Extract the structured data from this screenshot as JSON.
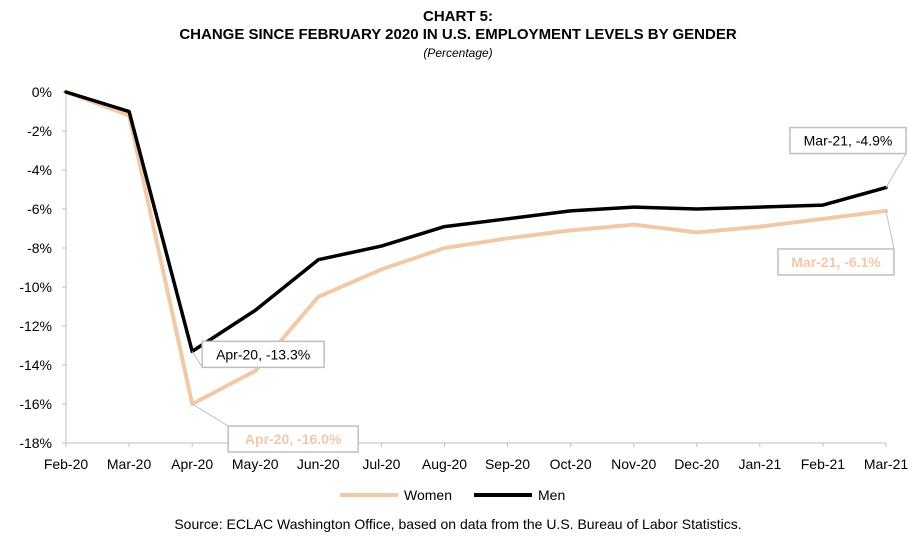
{
  "chart_data": {
    "type": "line",
    "title": "CHART 5:",
    "subtitle": "CHANGE SINCE FEBRUARY 2020 IN U.S. EMPLOYMENT LEVELS BY GENDER",
    "unit_note": "(Percentage)",
    "categories": [
      "Feb-20",
      "Mar-20",
      "Apr-20",
      "May-20",
      "Jun-20",
      "Jul-20",
      "Aug-20",
      "Sep-20",
      "Oct-20",
      "Nov-20",
      "Dec-20",
      "Jan-21",
      "Feb-21",
      "Mar-21"
    ],
    "ylim": [
      -18,
      0
    ],
    "yticks": [
      0,
      -2,
      -4,
      -6,
      -8,
      -10,
      -12,
      -14,
      -16,
      -18
    ],
    "ytick_labels": [
      "0%",
      "-2%",
      "-4%",
      "-6%",
      "-8%",
      "-10%",
      "-12%",
      "-14%",
      "-16%",
      "-18%"
    ],
    "series": [
      {
        "name": "Women",
        "color": "#f2c9a8",
        "values": [
          0,
          -1.2,
          -16.0,
          -14.3,
          -10.5,
          -9.1,
          -8.0,
          -7.5,
          -7.1,
          -6.8,
          -7.2,
          -6.9,
          -6.5,
          -6.1
        ]
      },
      {
        "name": "Men",
        "color": "#000000",
        "values": [
          0,
          -1.0,
          -13.3,
          -11.2,
          -8.6,
          -7.9,
          -6.9,
          -6.5,
          -6.1,
          -5.9,
          -6.0,
          -5.9,
          -5.8,
          -4.9
        ]
      }
    ],
    "annotations": [
      {
        "text": "Apr-20, -13.3%",
        "series": "Men",
        "index": 2
      },
      {
        "text": "Apr-20, -16.0%",
        "series": "Women",
        "index": 2
      },
      {
        "text": "Mar-21, -4.9%",
        "series": "Men",
        "index": 13
      },
      {
        "text": "Mar-21, -6.1%",
        "series": "Women",
        "index": 13
      }
    ],
    "legend": "bottom",
    "grid": false
  },
  "source": "Source: ECLAC Washington Office, based on data from the U.S. Bureau of Labor Statistics."
}
